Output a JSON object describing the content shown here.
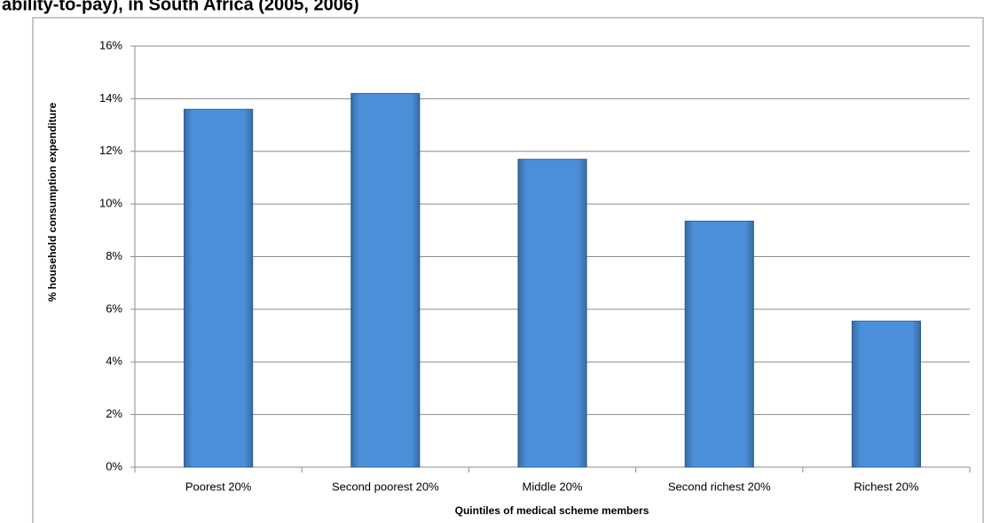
{
  "chart_data": {
    "type": "bar",
    "title": "ability-to-pay), in South Africa (2005, 2006)",
    "x_label": "Quintiles of medical scheme members",
    "y_label": "% household consumption expenditure",
    "categories": [
      "Poorest 20%",
      "Second poorest 20%",
      "Middle 20%",
      "Second richest 20%",
      "Richest 20%"
    ],
    "values": [
      13.6,
      14.2,
      11.7,
      9.35,
      5.55
    ],
    "color": "#4a8fd8",
    "ylim": [
      0,
      16
    ],
    "yticks": [
      {
        "value": 0,
        "label": "0%"
      },
      {
        "value": 2,
        "label": "2%"
      },
      {
        "value": 4,
        "label": "4%"
      },
      {
        "value": 6,
        "label": "6%"
      },
      {
        "value": 8,
        "label": "8%"
      },
      {
        "value": 10,
        "label": "10%"
      },
      {
        "value": 12,
        "label": "12%"
      },
      {
        "value": 14,
        "label": "14%"
      },
      {
        "value": 16,
        "label": "16%"
      }
    ],
    "grid": true
  }
}
